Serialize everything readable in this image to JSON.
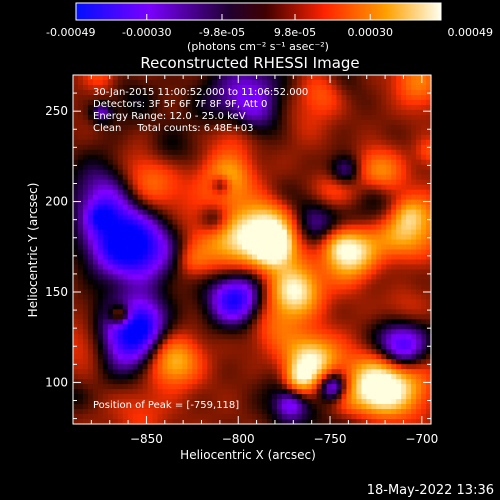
{
  "colorbar": {
    "tick_labels": [
      "-0.00049",
      "-0.00030",
      "-9.8e-05",
      "9.8e-05",
      "0.00030",
      "0.00049"
    ],
    "tick_values": [
      -0.00049,
      -0.0003,
      -9.8e-05,
      9.8e-05,
      0.0003,
      0.00049
    ],
    "range": [
      -0.00049,
      0.00049
    ],
    "units_label": "(photons cm⁻² s⁻¹ asec⁻²)"
  },
  "chart_data": {
    "type": "heatmap",
    "title": "Reconstructed RHESSI Image",
    "xlabel": "Heliocentric X (arcsec)",
    "ylabel": "Heliocentric Y (arcsec)",
    "xlim": [
      -890,
      -695
    ],
    "ylim": [
      77,
      270
    ],
    "xticks": [
      -850,
      -800,
      -750,
      -700
    ],
    "xtick_labels": [
      "−850",
      "−800",
      "−750",
      "−700"
    ],
    "yticks": [
      100,
      150,
      200,
      250
    ],
    "ytick_labels": [
      "100",
      "150",
      "200",
      "250"
    ],
    "annotations": [
      "30-Jan-2015 11:00:52.000 to 11:06:52.000",
      "Detectors: 3F 5F 6F 7F 8F 9F, Att 0",
      "Energy Range: 12.0 - 25.0 keV",
      "Clean     Total counts: 6.48E+03"
    ],
    "peak_label": "Position of Peak = [-759,118]",
    "peak_position": [
      -759,
      118
    ],
    "colormap": [
      "#0000ff",
      "#7f00ff",
      "#000000",
      "#ff3000",
      "#ffa000",
      "#ffffe0"
    ]
  },
  "footer": {
    "date": "18-May-2022 13:36"
  }
}
